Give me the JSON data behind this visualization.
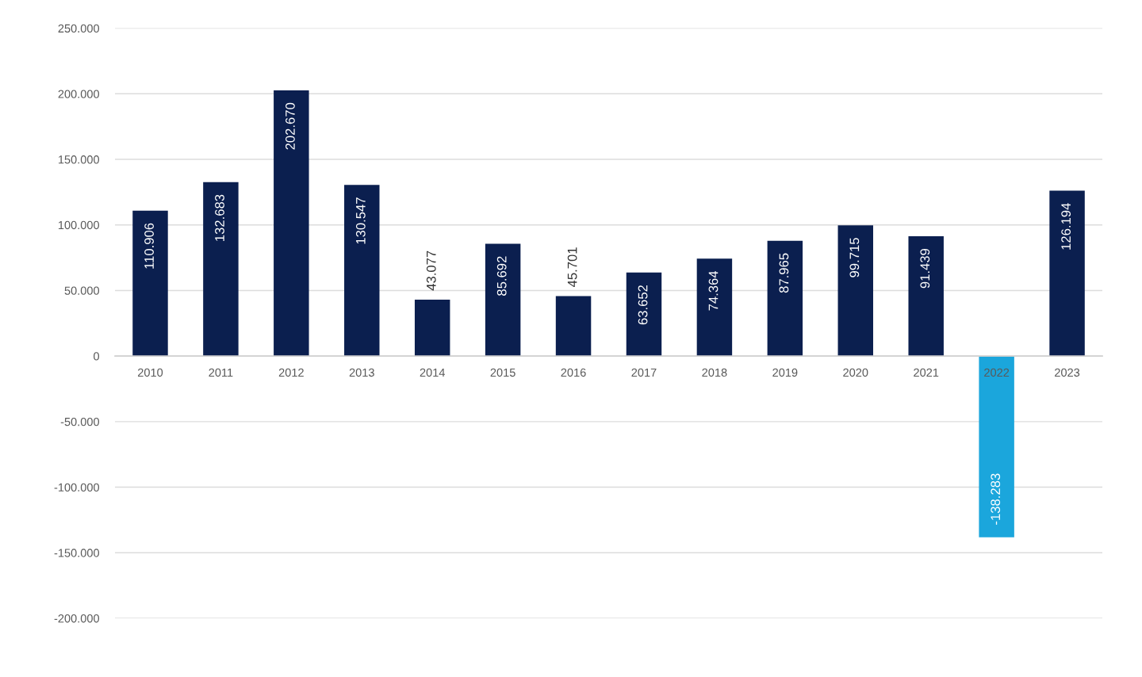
{
  "chart_data": {
    "type": "bar",
    "categories": [
      "2010",
      "2011",
      "2012",
      "2013",
      "2014",
      "2015",
      "2016",
      "2017",
      "2018",
      "2019",
      "2020",
      "2021",
      "2022",
      "2023"
    ],
    "values": [
      110906,
      132683,
      202670,
      130547,
      43077,
      85692,
      45701,
      63652,
      74364,
      87965,
      99715,
      91439,
      -138283,
      126194
    ],
    "colors": [
      "#0b1f4f",
      "#0b1f4f",
      "#0b1f4f",
      "#0b1f4f",
      "#0b1f4f",
      "#0b1f4f",
      "#0b1f4f",
      "#0b1f4f",
      "#0b1f4f",
      "#0b1f4f",
      "#0b1f4f",
      "#0b1f4f",
      "#1ba6dc",
      "#0b1f4f"
    ],
    "value_labels": [
      "110.906",
      "132.683",
      "202.670",
      "130.547",
      "43.077",
      "85.692",
      "45.701",
      "63.652",
      "74.364",
      "87.965",
      "99.715",
      "91.439",
      "-138.283",
      "126.194"
    ],
    "ylim": [
      -200000,
      250000
    ],
    "yticks": [
      {
        "value": -200000,
        "label": "-200.000"
      },
      {
        "value": -150000,
        "label": "-150.000"
      },
      {
        "value": -100000,
        "label": "-100.000"
      },
      {
        "value": -50000,
        "label": "-50.000"
      },
      0,
      {
        "value": 50000,
        "label": "50.000"
      },
      {
        "value": 100000,
        "label": "100.000"
      },
      {
        "value": 150000,
        "label": "150.000"
      },
      {
        "value": 200000,
        "label": "200.000"
      },
      {
        "value": 250000,
        "label": "250.000"
      }
    ],
    "grid": "y"
  }
}
